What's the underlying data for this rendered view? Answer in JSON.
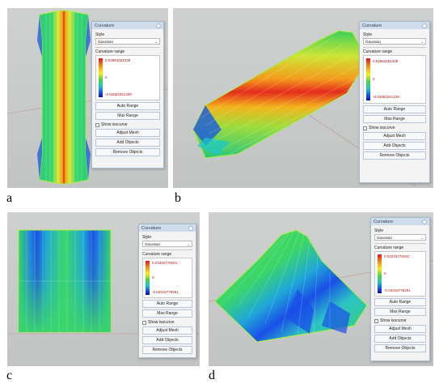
{
  "panels": [
    {
      "label": "a",
      "dialog": {
        "title": "Curvature",
        "style_label": "Style",
        "style_value": "Gaussian",
        "range_label": "Curvature range",
        "range_max": "0.02863251339",
        "range_mid": "0",
        "range_min": "-0.02863251339",
        "auto_range": "Auto Range",
        "max_range": "Max Range",
        "show_isocurve": "Show isocurve",
        "adjust_mesh": "Adjust Mesh",
        "add_objects": "Add Objects",
        "remove_objects": "Remove Objects"
      }
    },
    {
      "label": "b",
      "dialog": {
        "title": "Curvature",
        "style_label": "Style",
        "style_value": "Gaussian",
        "range_label": "Curvature range",
        "range_max": "0.02863251339",
        "range_mid": "0",
        "range_min": "-0.02863251339",
        "auto_range": "Auto Range",
        "max_range": "Max Range",
        "show_isocurve": "Show isocurve",
        "adjust_mesh": "Adjust Mesh",
        "add_objects": "Add Objects",
        "remove_objects": "Remove Objects"
      }
    },
    {
      "label": "c",
      "dialog": {
        "title": "Curvature",
        "style_label": "Style",
        "style_value": "Gaussian",
        "range_label": "Curvature range",
        "range_max": "0.03315778291",
        "range_mid": "0",
        "range_min": "-0.03315778291",
        "auto_range": "Auto Range",
        "max_range": "Max Range",
        "show_isocurve": "Show isocurve",
        "adjust_mesh": "Adjust Mesh",
        "add_objects": "Add Objects",
        "remove_objects": "Remove Objects"
      }
    },
    {
      "label": "d",
      "dialog": {
        "title": "Curvature",
        "style_label": "Style",
        "style_value": "Gaussian",
        "range_label": "Curvature range",
        "range_max": "0.03315778291",
        "range_mid": "0",
        "range_min": "-0.03315778291",
        "auto_range": "Auto Range",
        "max_range": "Max Range",
        "show_isocurve": "Show isocurve",
        "adjust_mesh": "Adjust Mesh",
        "add_objects": "Add Objects",
        "remove_objects": "Remove Objects"
      }
    }
  ],
  "colors": {
    "viewport_bg": "#c6c8c7",
    "dialog_title_bg": "#cfdcec",
    "range_text": "#b01818",
    "surface_high": "#e0141e",
    "surface_mid": "#4fd04a",
    "surface_low": "#1a4fe8"
  }
}
